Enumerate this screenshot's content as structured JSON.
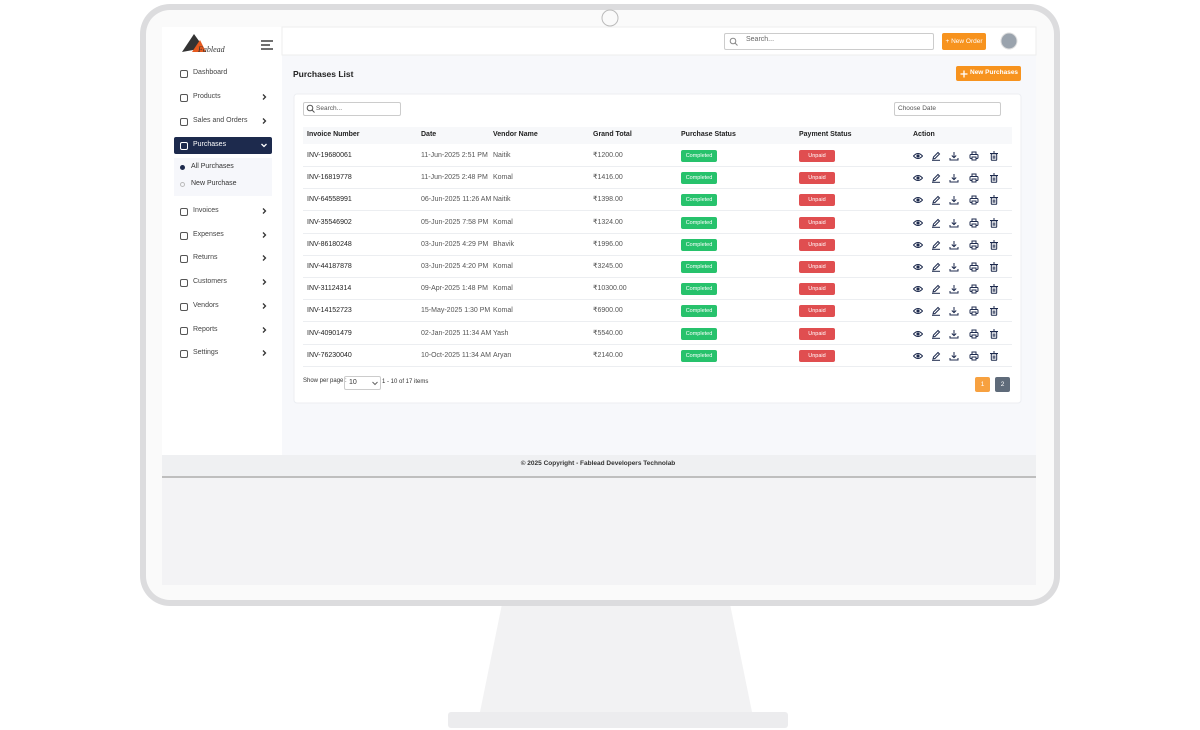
{
  "brand": "Fablead",
  "header": {
    "search_placeholder": "Search...",
    "new_order": "+ New Order"
  },
  "sidebar": {
    "items": [
      "Dashboard",
      "Products",
      "Sales and Orders",
      "Purchases",
      "Invoices",
      "Expenses",
      "Returns",
      "Customers",
      "Vendors",
      "Reports",
      "Settings"
    ],
    "submenu": [
      "All Purchases",
      "New Purchase"
    ]
  },
  "page": {
    "title": "Purchases List",
    "new_button": "New Purchases"
  },
  "table": {
    "search_placeholder": "Search...",
    "date_placeholder": "Choose Date",
    "columns": [
      "Invoice Number",
      "Date",
      "Vendor Name",
      "Grand Total",
      "Purchase Status",
      "Payment Status",
      "Action"
    ],
    "rows": [
      [
        "INV-19680061",
        "11-Jun-2025 2:51 PM",
        "Naitik",
        "₹1200.00",
        "Completed",
        "Unpaid"
      ],
      [
        "INV-16819778",
        "11-Jun-2025 2:48 PM",
        "Komal",
        "₹1416.00",
        "Completed",
        "Unpaid"
      ],
      [
        "INV-64558991",
        "06-Jun-2025 11:26 AM",
        "Naitik",
        "₹1398.00",
        "Completed",
        "Unpaid"
      ],
      [
        "INV-35546902",
        "05-Jun-2025 7:58 PM",
        "Komal",
        "₹1324.00",
        "Completed",
        "Unpaid"
      ],
      [
        "INV-86180248",
        "03-Jun-2025 4:29 PM",
        "Bhavik",
        "₹1996.00",
        "Completed",
        "Unpaid"
      ],
      [
        "INV-44187878",
        "03-Jun-2025 4:20 PM",
        "Komal",
        "₹3245.00",
        "Completed",
        "Unpaid"
      ],
      [
        "INV-31124314",
        "09-Apr-2025 1:48 PM",
        "Komal",
        "₹10300.00",
        "Completed",
        "Unpaid"
      ],
      [
        "INV-14152723",
        "15-May-2025 1:30 PM",
        "Komal",
        "₹6900.00",
        "Completed",
        "Unpaid"
      ],
      [
        "INV-40901479",
        "02-Jan-2025 11:34 AM",
        "Yash",
        "₹5540.00",
        "Completed",
        "Unpaid"
      ],
      [
        "INV-76230040",
        "10-Oct-2025 11:34 AM",
        "Aryan",
        "₹2140.00",
        "Completed",
        "Unpaid"
      ]
    ]
  },
  "pagination": {
    "label": "Show per page :",
    "per_page": "10",
    "range": "1 - 10 of 17 items",
    "pages": [
      "1",
      "2"
    ]
  },
  "footer": "© 2025 Copyright - Fablead Developers Technolab"
}
